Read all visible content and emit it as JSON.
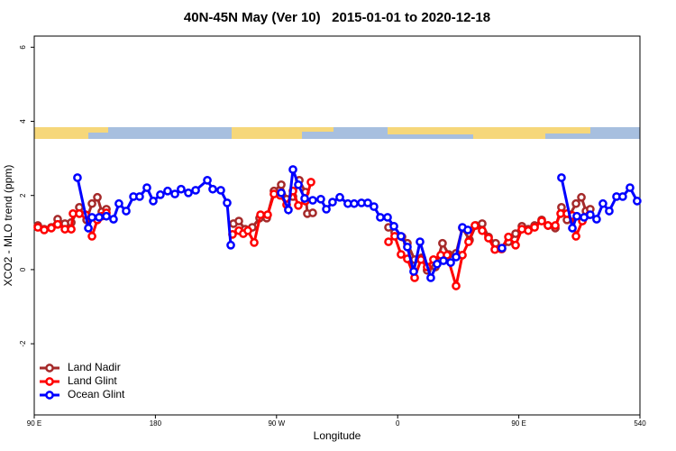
{
  "chart_data": {
    "type": "line",
    "title": "40N-45N May (Ver 10)   2015-01-01 to 2020-12-18",
    "x_label": "Longitude",
    "y_label": "XCO2 - MLO trend (ppm)",
    "xlim": [
      90,
      540
    ],
    "xticks": [
      {
        "value": 90,
        "label": "90 E"
      },
      180,
      {
        "value": 270,
        "label": "90 W"
      },
      {
        "value": 360,
        "label": "0"
      },
      {
        "value": 450,
        "label": "90 E"
      },
      540
    ],
    "ylim": [
      -3.92,
      6.3
    ],
    "yticks": [
      -2,
      0,
      2,
      4,
      6
    ],
    "legend": "bottom-left",
    "series": [
      {
        "name": "Land Nadir",
        "color": "#a52a2a",
        "x": [
          92.7,
          97.4,
          102.7,
          107.4,
          112.8,
          117.5,
          123.5,
          128.9,
          132.9,
          136.9,
          140.2,
          143.6,
          null,
          238.0,
          242.0,
          246.7,
          252.0,
          257.4,
          262.7,
          268.1,
          273.5,
          277.5,
          282.2,
          286.9,
          291.5,
          292.9,
          296.9,
          null,
          353.2,
          357.8,
          363.2,
          367.2,
          372.6,
          377.9,
          381.9,
          388.0,
          393.3,
          398.0,
          403.4,
          408.1,
          413.4,
          418.1,
          422.8,
          427.5,
          432.8,
          437.5,
          442.3,
          447.6,
          452.3,
          457.0,
          461.7,
          467.0,
          471.7,
          477.1,
          481.7,
          485.8,
          492.5,
          496.5,
          499.9,
          503.1
        ],
        "values": [
          1.19,
          1.09,
          1.14,
          1.36,
          1.24,
          1.27,
          1.68,
          1.34,
          1.78,
          1.95,
          1.56,
          1.63,
          null,
          1.24,
          1.31,
          1.09,
          1.14,
          1.39,
          1.39,
          2.12,
          2.29,
          1.9,
          1.97,
          2.41,
          2.09,
          1.51,
          1.53,
          null,
          1.14,
          1.0,
          0.88,
          0.71,
          0.27,
          0.32,
          -0.02,
          0.07,
          0.71,
          0.41,
          0.44,
          1.12,
          0.8,
          1.19,
          1.24,
          0.88,
          0.71,
          0.56,
          0.75,
          0.97,
          1.17,
          1.09,
          1.19,
          1.34,
          1.19,
          1.12,
          1.68,
          1.34,
          1.78,
          1.95,
          1.58,
          1.63
        ]
      },
      {
        "name": "Land Glint",
        "color": "#ff0000",
        "x": [
          92.7,
          97.4,
          102.7,
          107.4,
          112.8,
          117.5,
          118.8,
          123.5,
          128.2,
          132.9,
          136.9,
          140.2,
          143.6,
          null,
          237.3,
          242.0,
          245.3,
          248.7,
          253.4,
          258.1,
          263.4,
          268.1,
          272.8,
          277.5,
          282.2,
          286.2,
          291.5,
          295.6,
          null,
          353.2,
          357.8,
          362.5,
          367.2,
          372.6,
          377.3,
          381.9,
          386.6,
          392.0,
          396.7,
          403.4,
          408.1,
          412.7,
          417.4,
          422.8,
          427.5,
          432.2,
          436.9,
          442.3,
          447.6,
          452.3,
          457.0,
          461.7,
          467.0,
          471.7,
          477.1,
          481.1,
          485.8,
          489.8,
          492.5,
          497.2,
          502.5
        ],
        "values": [
          1.14,
          1.07,
          1.12,
          1.22,
          1.09,
          1.09,
          1.51,
          1.51,
          1.48,
          0.9,
          1.34,
          1.44,
          1.53,
          null,
          0.95,
          1.05,
          0.97,
          1.05,
          0.73,
          1.48,
          1.48,
          2.04,
          2.0,
          1.75,
          2.12,
          1.73,
          1.85,
          2.36,
          null,
          0.75,
          0.9,
          0.41,
          0.29,
          -0.22,
          0.27,
          0.07,
          0.27,
          0.39,
          0.39,
          -0.44,
          0.39,
          0.75,
          1.19,
          1.05,
          0.85,
          0.54,
          0.56,
          0.88,
          0.66,
          1.09,
          1.05,
          1.14,
          1.31,
          1.19,
          1.19,
          1.51,
          1.51,
          1.46,
          0.9,
          1.31,
          1.48
        ]
      },
      {
        "name": "Ocean Glint",
        "color": "#0000ff",
        "x": [
          122.1,
          130.2,
          132.9,
          138.2,
          143.6,
          148.9,
          152.9,
          158.3,
          163.7,
          168.3,
          173.7,
          178.4,
          183.7,
          189.1,
          194.5,
          199.1,
          204.5,
          209.9,
          218.6,
          222.6,
          228.6,
          233.3,
          236.0,
          null,
          273.5,
          278.8,
          282.2,
          286.2,
          290.9,
          296.9,
          302.9,
          307.0,
          311.6,
          317.0,
          323.0,
          327.7,
          333.1,
          337.8,
          342.4,
          347.1,
          352.5,
          357.2,
          362.5,
          367.2,
          371.9,
          376.6,
          384.6,
          389.3,
          394.0,
          399.4,
          403.4,
          408.1,
          412.1,
          null,
          437.5,
          null,
          481.7,
          489.8,
          493.1,
          498.5,
          503.1,
          507.8,
          512.5,
          517.2,
          522.6,
          527.2,
          532.6,
          537.9
        ],
        "values": [
          2.48,
          1.12,
          1.41,
          1.41,
          1.44,
          1.36,
          1.78,
          1.58,
          1.97,
          1.97,
          2.21,
          1.85,
          2.02,
          2.12,
          2.04,
          2.17,
          2.07,
          2.14,
          2.41,
          2.17,
          2.14,
          1.8,
          0.66,
          null,
          2.07,
          1.61,
          2.7,
          2.29,
          1.92,
          1.87,
          1.9,
          1.63,
          1.82,
          1.95,
          1.78,
          1.78,
          1.8,
          1.8,
          1.7,
          1.41,
          1.41,
          1.17,
          0.9,
          0.61,
          -0.05,
          0.75,
          -0.22,
          0.15,
          0.24,
          0.19,
          0.34,
          1.14,
          1.07,
          null,
          0.58,
          null,
          2.48,
          1.12,
          1.44,
          1.41,
          1.48,
          1.36,
          1.78,
          1.58,
          1.97,
          1.97,
          2.21,
          1.85
        ]
      }
    ]
  }
}
